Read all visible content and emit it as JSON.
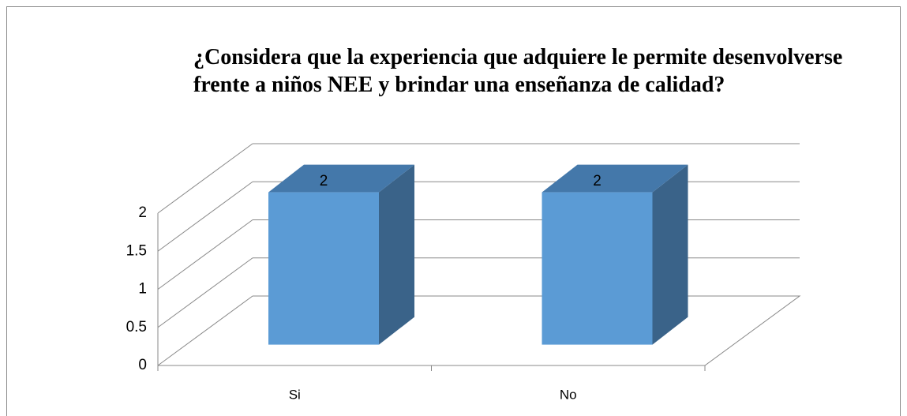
{
  "chart_data": {
    "type": "bar",
    "title": "¿Considera que la experiencia que adquiere le permite desenvolverse frente a niños NEE y brindar una enseñanza de calidad?",
    "categories": [
      "Si",
      "No"
    ],
    "values": [
      2,
      2
    ],
    "color": "#5b9bd5",
    "ylim": [
      0,
      2
    ],
    "yticks": [
      0,
      0.5,
      1,
      1.5,
      2
    ],
    "grid": true
  }
}
